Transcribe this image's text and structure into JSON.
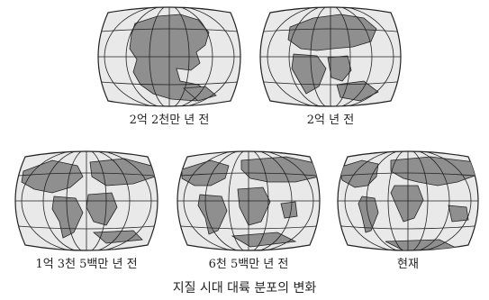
{
  "maps": [
    {
      "label": "2억 2천만 년 전"
    },
    {
      "label": "2억 년 전"
    },
    {
      "label": "1억 3천 5백만 년 전"
    },
    {
      "label": "6천 5백만 년 전"
    },
    {
      "label": "현재"
    }
  ],
  "caption": "지질 시대 대륙 분포의 변화",
  "colors": {
    "ocean": "#e9e9e9",
    "land": "#8f8f8f",
    "line": "#222222"
  }
}
